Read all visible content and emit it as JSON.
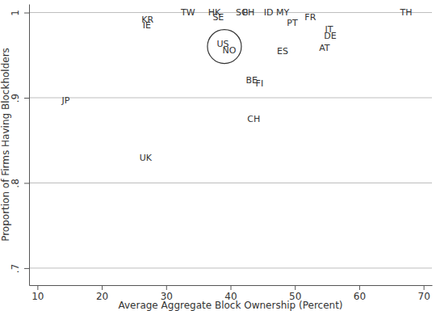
{
  "chart_data": {
    "type": "scatter",
    "x_label": "Average Aggregate Block Ownership (Percent)",
    "y_label": "Proportion of Firms Having Blockholders",
    "xlim": [
      8.7,
      71.3
    ],
    "xticks": [
      10,
      20,
      30,
      40,
      50,
      60,
      70
    ],
    "ylim": [
      0.68,
      1.01
    ],
    "yticks": [
      {
        "value": 0.7,
        "label": ".7"
      },
      {
        "value": 0.8,
        "label": ".8"
      },
      {
        "value": 0.9,
        "label": ".9"
      },
      1
    ],
    "grid": true,
    "series": [
      {
        "marker": "text",
        "color": "#333333",
        "labels": [
          "TW",
          "HK",
          "SE",
          "SG",
          "PH",
          "ID",
          "MY",
          "PT",
          "FR",
          "IT",
          "DE",
          "AT",
          "TH",
          "KR",
          "IE",
          "NO",
          "ES",
          "BE",
          "FI",
          "CH",
          "JP",
          "UK"
        ],
        "x": [
          33.4,
          37.5,
          38.1,
          41.8,
          42.8,
          45.9,
          48.1,
          49.6,
          52.4,
          55.3,
          55.5,
          54.6,
          67.3,
          27.1,
          27.0,
          39.8,
          48.1,
          43.3,
          44.5,
          43.6,
          14.4,
          26.8
        ],
        "values": [
          1.0,
          1.0,
          0.995,
          1.0,
          1.0,
          1.0,
          1.0,
          0.988,
          0.995,
          0.98,
          0.973,
          0.959,
          1.0,
          0.992,
          0.985,
          0.956,
          0.955,
          0.921,
          0.917,
          0.875,
          0.897,
          0.83
        ]
      },
      {
        "marker": "circle",
        "color": "#333333",
        "labels": [
          "US"
        ],
        "x": [
          38.8
        ],
        "values": [
          0.963
        ]
      }
    ]
  }
}
